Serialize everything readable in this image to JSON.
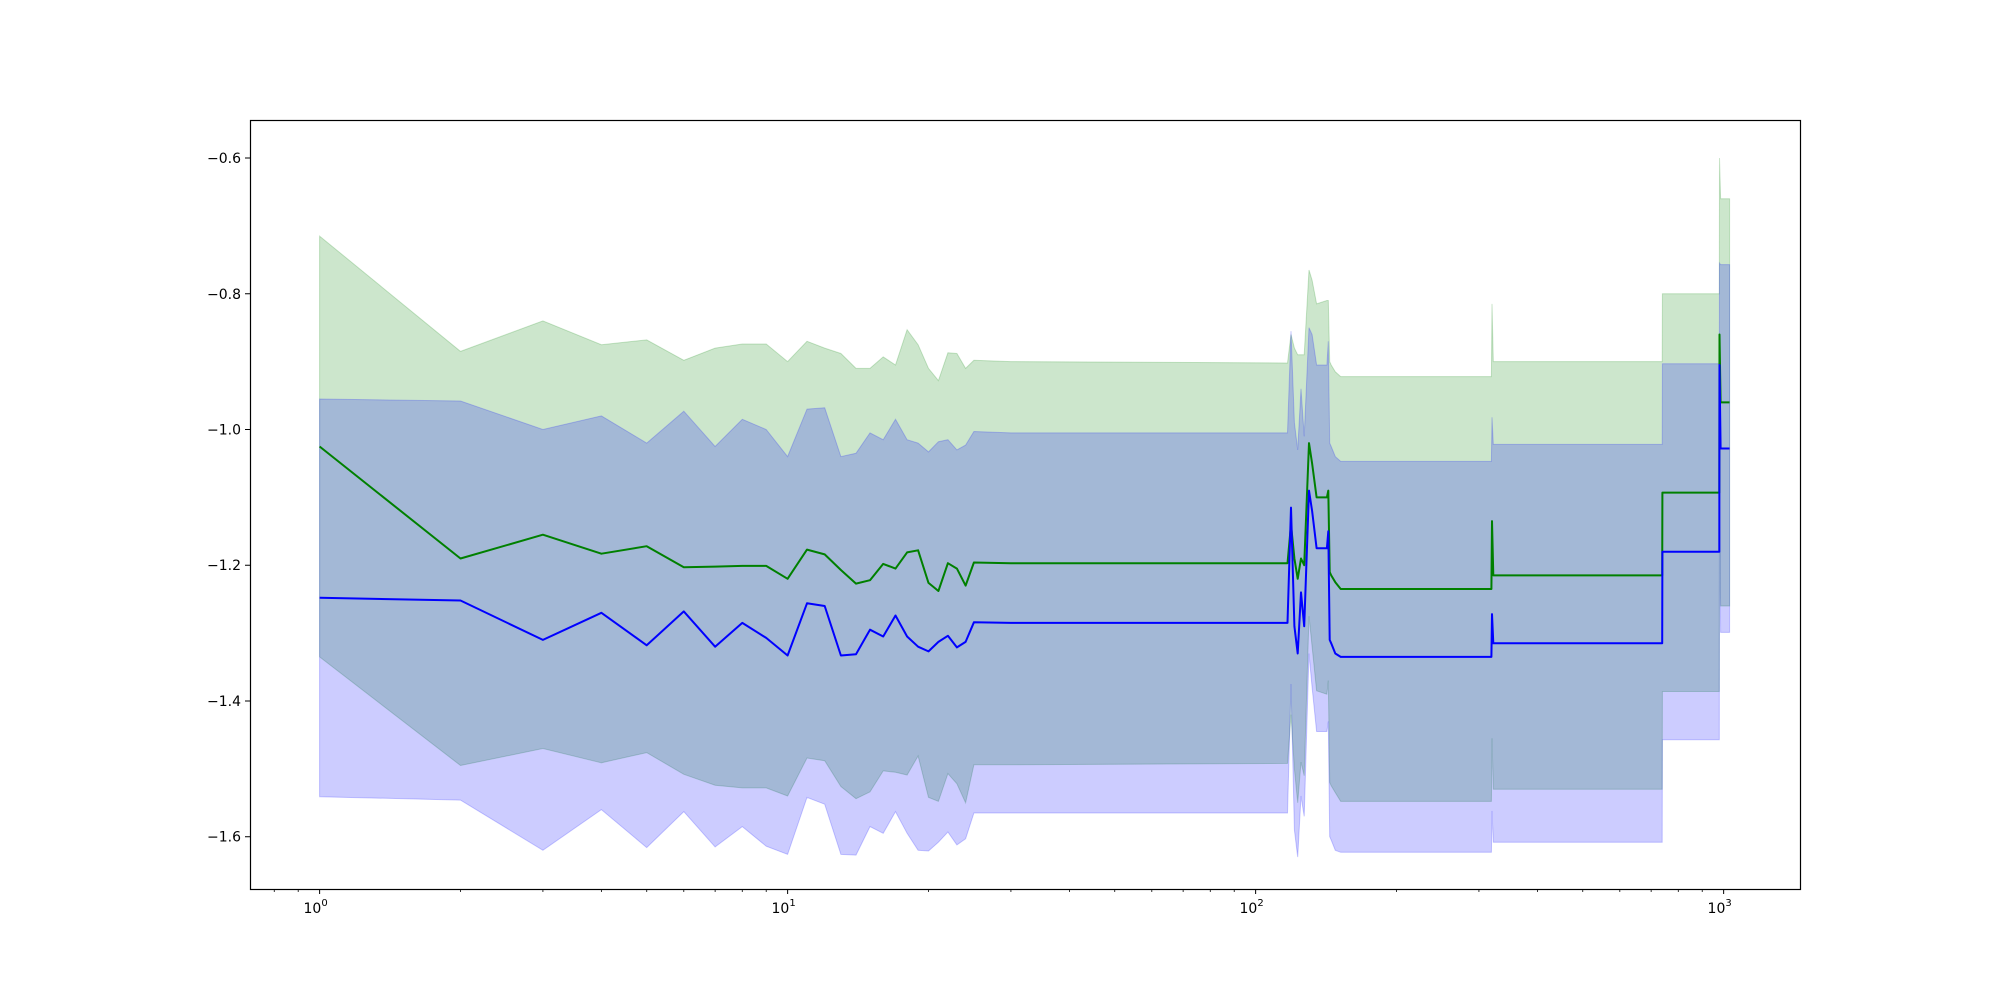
{
  "chart_data": {
    "type": "line",
    "title": "",
    "xlabel": "",
    "ylabel": "",
    "xscale": "log",
    "xlim": [
      0.71,
      1456
    ],
    "ylim": [
      -1.677,
      -0.544
    ],
    "grid": false,
    "legend": null,
    "x_ticks": [
      {
        "value": 1,
        "base": "10",
        "exp": "0"
      },
      {
        "value": 10,
        "base": "10",
        "exp": "1"
      },
      {
        "value": 100,
        "base": "10",
        "exp": "2"
      },
      {
        "value": 1000,
        "base": "10",
        "exp": "3"
      }
    ],
    "y_ticks": [
      {
        "value": -1.6,
        "label": "−1.6"
      },
      {
        "value": -1.4,
        "label": "−1.4"
      },
      {
        "value": -1.2,
        "label": "−1.2"
      },
      {
        "value": -1.0,
        "label": "−1.0"
      },
      {
        "value": -0.8,
        "label": "−0.8"
      },
      {
        "value": -0.6,
        "label": "−0.6"
      }
    ],
    "x": [
      1,
      2,
      3,
      4,
      5,
      6,
      7,
      8,
      9,
      10,
      11,
      12,
      13,
      14,
      15,
      16,
      17,
      18,
      19,
      20,
      21,
      22,
      23,
      24,
      25,
      30,
      117,
      119,
      121,
      123,
      125,
      127,
      130,
      132,
      135,
      142,
      143,
      144,
      145,
      148,
      152,
      319,
      320,
      322,
      739,
      740,
      979,
      980,
      985,
      987,
      1030
    ],
    "series": [
      {
        "name": "green",
        "color": "#008000",
        "mean": [
          -1.025,
          -1.19,
          -1.155,
          -1.183,
          -1.172,
          -1.203,
          -1.202,
          -1.201,
          -1.201,
          -1.22,
          -1.177,
          -1.184,
          -1.207,
          -1.227,
          -1.222,
          -1.198,
          -1.205,
          -1.181,
          -1.178,
          -1.226,
          -1.238,
          -1.197,
          -1.205,
          -1.23,
          -1.196,
          -1.197,
          -1.197,
          -1.14,
          -1.19,
          -1.22,
          -1.19,
          -1.2,
          -1.02,
          -1.05,
          -1.1,
          -1.1,
          -1.09,
          -1.21,
          -1.215,
          -1.225,
          -1.235,
          -1.235,
          -1.135,
          -1.215,
          -1.215,
          -1.093,
          -1.093,
          -0.86,
          -0.96,
          -0.96,
          -0.96
        ],
        "std": [
          0.31,
          0.305,
          0.315,
          0.308,
          0.304,
          0.305,
          0.322,
          0.327,
          0.327,
          0.32,
          0.307,
          0.304,
          0.319,
          0.317,
          0.312,
          0.305,
          0.3,
          0.328,
          0.303,
          0.316,
          0.31,
          0.31,
          0.317,
          0.32,
          0.298,
          0.297,
          0.295,
          0.28,
          0.31,
          0.33,
          0.3,
          0.31,
          0.255,
          0.27,
          0.285,
          0.29,
          0.28,
          0.31,
          0.31,
          0.31,
          0.313,
          0.313,
          0.32,
          0.315,
          0.315,
          0.293,
          0.293,
          0.26,
          0.3,
          0.3,
          0.3
        ]
      },
      {
        "name": "blue",
        "color": "#0000ff",
        "mean": [
          -1.248,
          -1.252,
          -1.31,
          -1.27,
          -1.318,
          -1.268,
          -1.32,
          -1.285,
          -1.307,
          -1.333,
          -1.256,
          -1.26,
          -1.333,
          -1.331,
          -1.295,
          -1.305,
          -1.274,
          -1.305,
          -1.32,
          -1.327,
          -1.313,
          -1.304,
          -1.321,
          -1.313,
          -1.284,
          -1.285,
          -1.285,
          -1.115,
          -1.29,
          -1.33,
          -1.24,
          -1.29,
          -1.09,
          -1.12,
          -1.175,
          -1.175,
          -1.15,
          -1.31,
          -1.315,
          -1.33,
          -1.335,
          -1.335,
          -1.272,
          -1.315,
          -1.315,
          -1.18,
          -1.18,
          -0.905,
          -1.028,
          -1.028,
          -1.028
        ],
        "std": [
          0.293,
          0.294,
          0.31,
          0.29,
          0.298,
          0.295,
          0.295,
          0.3,
          0.307,
          0.293,
          0.286,
          0.292,
          0.293,
          0.296,
          0.29,
          0.29,
          0.289,
          0.29,
          0.3,
          0.294,
          0.295,
          0.289,
          0.291,
          0.29,
          0.281,
          0.28,
          0.28,
          0.26,
          0.3,
          0.3,
          0.3,
          0.28,
          0.24,
          0.26,
          0.27,
          0.27,
          0.28,
          0.29,
          0.29,
          0.29,
          0.288,
          0.288,
          0.29,
          0.293,
          0.293,
          0.277,
          0.277,
          0.15,
          0.271,
          0.271,
          0.271
        ]
      }
    ]
  }
}
